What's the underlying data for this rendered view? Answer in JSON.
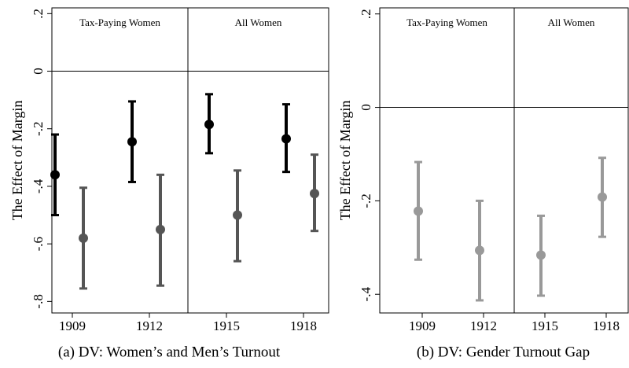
{
  "chart_data": [
    {
      "type": "errorbar",
      "caption": "(a) DV: Women’s and Men’s Turnout",
      "y_label": "The Effect of Margin",
      "annotations": [
        "Tax-Paying Women",
        "All Women"
      ],
      "categories": [
        "1909",
        "1912",
        "1915",
        "1918"
      ],
      "series": [
        {
          "color": "#000000",
          "values": [
            -0.36,
            -0.245,
            -0.185,
            -0.235
          ],
          "lower": [
            -0.5,
            -0.385,
            -0.285,
            -0.35
          ],
          "upper": [
            -0.22,
            -0.105,
            -0.08,
            -0.115
          ]
        },
        {
          "color": "#555555",
          "values": [
            -0.58,
            -0.55,
            -0.5,
            -0.425
          ],
          "lower": [
            -0.755,
            -0.745,
            -0.66,
            -0.555
          ],
          "upper": [
            -0.405,
            -0.36,
            -0.345,
            -0.29
          ]
        }
      ],
      "ylim": [
        -0.84,
        0.22
      ],
      "yticks": [
        {
          "value": 0.2,
          "label": ".2"
        },
        0,
        {
          "value": -0.2,
          "label": "-.2"
        },
        {
          "value": -0.4,
          "label": "-.4"
        },
        {
          "value": -0.6,
          "label": "-.6"
        },
        {
          "value": -0.8,
          "label": "-.8"
        }
      ]
    },
    {
      "type": "errorbar",
      "caption": "(b) DV: Gender Turnout Gap",
      "y_label": "The Effect of Margin",
      "annotations": [
        "Tax-Paying Women",
        "All Women"
      ],
      "categories": [
        "1909",
        "1912",
        "1915",
        "1918"
      ],
      "series": [
        {
          "color": "#999999",
          "values": [
            -0.222,
            -0.306,
            -0.316,
            -0.192
          ],
          "lower": [
            -0.326,
            -0.413,
            -0.403,
            -0.277
          ],
          "upper": [
            -0.117,
            -0.2,
            -0.232,
            -0.108
          ]
        }
      ],
      "ylim": [
        -0.44,
        0.213
      ],
      "yticks": [
        {
          "value": 0.2,
          "label": ".2"
        },
        0,
        {
          "value": -0.2,
          "label": "-.2"
        },
        {
          "value": -0.4,
          "label": "-.4"
        }
      ]
    }
  ]
}
